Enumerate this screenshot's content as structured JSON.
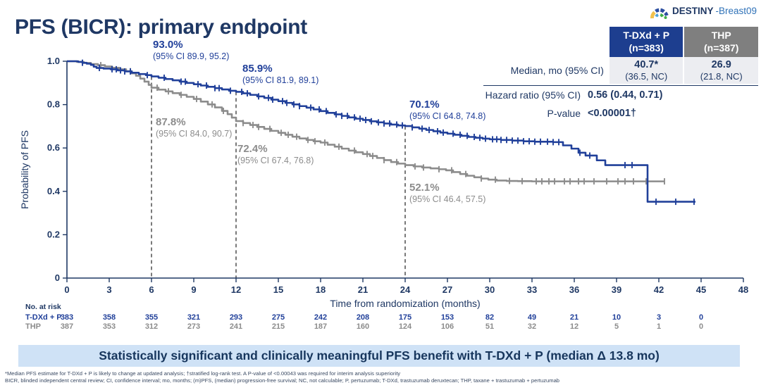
{
  "header": {
    "title": "PFS (BICR): primary endpoint",
    "logo": {
      "bold": "DESTINY",
      "light": "-Breast09"
    }
  },
  "stats_table": {
    "columns": [
      {
        "line1": "T-DXd + P",
        "line2": "(n=383)"
      },
      {
        "line1": "THP",
        "line2": "(n=387)"
      }
    ],
    "median": {
      "label": "Median, mo (95% CI)",
      "tdxd": "40.7*",
      "tdxd_ci": "(36.5, NC)",
      "thp": "26.9",
      "thp_ci": "(21.8, NC)"
    },
    "hazard": {
      "label": "Hazard ratio (95% CI)",
      "value": "0.56 (0.44, 0.71)"
    },
    "pvalue": {
      "label": "P-value",
      "value": "<0.00001†"
    }
  },
  "chart_data": {
    "type": "line",
    "subtype": "kaplan-meier",
    "xlabel": "Time from randomization (months)",
    "ylabel": "Probability of PFS",
    "xlim": [
      0,
      48
    ],
    "ylim": [
      0,
      1
    ],
    "x_ticks": [
      0,
      3,
      6,
      9,
      12,
      15,
      18,
      21,
      24,
      27,
      30,
      33,
      36,
      39,
      42,
      45,
      48
    ],
    "y_tick_values": [
      0,
      0.2,
      0.4,
      0.6,
      0.8,
      1.0
    ],
    "y_tick_labels": [
      "0",
      "0.2",
      "0.4",
      "0.6",
      "0.8",
      "1.0"
    ],
    "grid": false,
    "landmark_months": [
      6,
      12,
      24
    ],
    "axis_color": "#1F3864",
    "landmark_line_color": "#4D4D4D",
    "series": [
      {
        "name": "T-DXd + P",
        "color": "#21409A",
        "points": [
          [
            0,
            1.0
          ],
          [
            0.8,
            0.997
          ],
          [
            1.1,
            0.993
          ],
          [
            1.4,
            0.989
          ],
          [
            1.7,
            0.983
          ],
          [
            1.9,
            0.975
          ],
          [
            2.1,
            0.969
          ],
          [
            2.6,
            0.966
          ],
          [
            3.1,
            0.963
          ],
          [
            3.6,
            0.958
          ],
          [
            4.1,
            0.953
          ],
          [
            4.6,
            0.947
          ],
          [
            5.1,
            0.941
          ],
          [
            5.6,
            0.936
          ],
          [
            6.0,
            0.93
          ],
          [
            6.5,
            0.924
          ],
          [
            7.0,
            0.918
          ],
          [
            7.5,
            0.912
          ],
          [
            8.0,
            0.906
          ],
          [
            8.5,
            0.9
          ],
          [
            9.0,
            0.894
          ],
          [
            9.5,
            0.888
          ],
          [
            10.0,
            0.882
          ],
          [
            10.5,
            0.876
          ],
          [
            11.0,
            0.87
          ],
          [
            11.5,
            0.864
          ],
          [
            12.0,
            0.859
          ],
          [
            12.5,
            0.852
          ],
          [
            13.0,
            0.845
          ],
          [
            13.5,
            0.838
          ],
          [
            14.0,
            0.831
          ],
          [
            14.5,
            0.823
          ],
          [
            15.0,
            0.816
          ],
          [
            15.5,
            0.808
          ],
          [
            16.0,
            0.801
          ],
          [
            16.5,
            0.793
          ],
          [
            17.0,
            0.786
          ],
          [
            17.5,
            0.778
          ],
          [
            18.0,
            0.77
          ],
          [
            18.5,
            0.762
          ],
          [
            19.0,
            0.755
          ],
          [
            19.5,
            0.748
          ],
          [
            20.0,
            0.741
          ],
          [
            20.5,
            0.735
          ],
          [
            21.0,
            0.729
          ],
          [
            21.5,
            0.723
          ],
          [
            22.0,
            0.718
          ],
          [
            22.5,
            0.713
          ],
          [
            23.0,
            0.708
          ],
          [
            23.5,
            0.704
          ],
          [
            24.0,
            0.701
          ],
          [
            24.5,
            0.695
          ],
          [
            25.0,
            0.689
          ],
          [
            25.5,
            0.683
          ],
          [
            26.0,
            0.677
          ],
          [
            26.5,
            0.671
          ],
          [
            27.0,
            0.666
          ],
          [
            27.5,
            0.661
          ],
          [
            28.0,
            0.656
          ],
          [
            28.5,
            0.651
          ],
          [
            29.0,
            0.647
          ],
          [
            29.5,
            0.643
          ],
          [
            30.0,
            0.64
          ],
          [
            30.8,
            0.637
          ],
          [
            31.6,
            0.634
          ],
          [
            32.4,
            0.631
          ],
          [
            33.2,
            0.629
          ],
          [
            34.5,
            0.627
          ],
          [
            35.2,
            0.612
          ],
          [
            35.8,
            0.597
          ],
          [
            36.3,
            0.578
          ],
          [
            36.8,
            0.565
          ],
          [
            37.6,
            0.543
          ],
          [
            38.2,
            0.521
          ],
          [
            41.2,
            0.352
          ],
          [
            44.6,
            0.352
          ]
        ],
        "censor_times": [
          1.1,
          2.3,
          3.2,
          3.5,
          3.8,
          4.1,
          4.5,
          5.7,
          6.9,
          8.1,
          8.4,
          9.3,
          9.9,
          10.5,
          10.8,
          11.6,
          12.4,
          12.8,
          13.6,
          14.3,
          14.6,
          15.3,
          15.6,
          16.1,
          16.5,
          17.3,
          17.9,
          18.4,
          19.1,
          19.5,
          19.9,
          20.4,
          20.8,
          21.2,
          21.6,
          22.1,
          22.5,
          22.9,
          23.4,
          23.8,
          24.5,
          25.2,
          25.7,
          26.3,
          26.7,
          27.4,
          27.9,
          28.4,
          28.9,
          29.3,
          29.7,
          30.2,
          30.5,
          30.8,
          31.2,
          31.6,
          32.0,
          32.4,
          32.8,
          33.2,
          33.6,
          34.1,
          34.5,
          34.9,
          36.4,
          37.1,
          39.6,
          40.1,
          41.8,
          43.2,
          44.5
        ]
      },
      {
        "name": "THP",
        "color": "#8C8C8C",
        "points": [
          [
            0,
            1.0
          ],
          [
            0.7,
            0.997
          ],
          [
            1.2,
            0.992
          ],
          [
            1.7,
            0.987
          ],
          [
            2.2,
            0.982
          ],
          [
            2.7,
            0.976
          ],
          [
            3.2,
            0.97
          ],
          [
            3.7,
            0.963
          ],
          [
            4.2,
            0.954
          ],
          [
            4.6,
            0.944
          ],
          [
            4.9,
            0.933
          ],
          [
            5.2,
            0.92
          ],
          [
            5.5,
            0.906
          ],
          [
            5.8,
            0.891
          ],
          [
            6.0,
            0.878
          ],
          [
            6.5,
            0.869
          ],
          [
            7.0,
            0.861
          ],
          [
            7.5,
            0.853
          ],
          [
            8.0,
            0.845
          ],
          [
            8.5,
            0.836
          ],
          [
            9.0,
            0.826
          ],
          [
            9.5,
            0.814
          ],
          [
            10.0,
            0.801
          ],
          [
            10.5,
            0.787
          ],
          [
            11.0,
            0.771
          ],
          [
            11.4,
            0.756
          ],
          [
            11.7,
            0.74
          ],
          [
            12.0,
            0.724
          ],
          [
            12.5,
            0.715
          ],
          [
            13.0,
            0.706
          ],
          [
            13.5,
            0.697
          ],
          [
            14.0,
            0.688
          ],
          [
            14.5,
            0.679
          ],
          [
            15.0,
            0.67
          ],
          [
            15.5,
            0.661
          ],
          [
            16.0,
            0.652
          ],
          [
            16.5,
            0.644
          ],
          [
            17.0,
            0.637
          ],
          [
            17.5,
            0.631
          ],
          [
            18.0,
            0.625
          ],
          [
            18.5,
            0.615
          ],
          [
            19.0,
            0.606
          ],
          [
            19.5,
            0.597
          ],
          [
            20.0,
            0.588
          ],
          [
            20.5,
            0.58
          ],
          [
            21.0,
            0.572
          ],
          [
            21.5,
            0.563
          ],
          [
            22.0,
            0.554
          ],
          [
            22.5,
            0.544
          ],
          [
            23.0,
            0.535
          ],
          [
            23.5,
            0.528
          ],
          [
            24.0,
            0.521
          ],
          [
            24.6,
            0.515
          ],
          [
            25.2,
            0.51
          ],
          [
            25.8,
            0.506
          ],
          [
            26.4,
            0.502
          ],
          [
            26.9,
            0.497
          ],
          [
            27.4,
            0.489
          ],
          [
            27.9,
            0.48
          ],
          [
            28.4,
            0.472
          ],
          [
            28.9,
            0.465
          ],
          [
            29.4,
            0.459
          ],
          [
            29.9,
            0.454
          ],
          [
            30.5,
            0.45
          ],
          [
            31.2,
            0.448
          ],
          [
            32.0,
            0.447
          ],
          [
            33.0,
            0.446
          ],
          [
            42.4,
            0.446
          ]
        ],
        "censor_times": [
          2.4,
          4.5,
          6.4,
          7.2,
          8.1,
          9.2,
          10.3,
          11.1,
          12.5,
          13.2,
          13.6,
          14.4,
          15.2,
          15.7,
          16.3,
          17.1,
          17.6,
          18.3,
          19.3,
          20.4,
          21.3,
          21.7,
          22.5,
          23.4,
          24.7,
          25.3,
          26.4,
          27.3,
          28.3,
          29.4,
          30.4,
          31.4,
          32.3,
          33.3,
          33.7,
          34.2,
          34.6,
          35.3,
          35.7,
          36.3,
          36.7,
          37.4,
          38.3,
          39.1,
          39.6,
          40.2,
          41.1,
          42.4
        ]
      }
    ],
    "annotations": [
      {
        "series": "T-DXd + P",
        "month": 6,
        "pct": "93.0%",
        "ci": "(95% CI 89.9, 95.2)"
      },
      {
        "series": "T-DXd + P",
        "month": 12,
        "pct": "85.9%",
        "ci": "(95% CI 81.9, 89.1)"
      },
      {
        "series": "T-DXd + P",
        "month": 24,
        "pct": "70.1%",
        "ci": "(95% CI 64.8, 74.8)"
      },
      {
        "series": "THP",
        "month": 6,
        "pct": "87.8%",
        "ci": "(95% CI 84.0, 90.7)"
      },
      {
        "series": "THP",
        "month": 12,
        "pct": "72.4%",
        "ci": "(95% CI 67.4, 76.8)"
      },
      {
        "series": "THP",
        "month": 24,
        "pct": "52.1%",
        "ci": "(95% CI 46.4, 57.5)"
      }
    ]
  },
  "at_risk": {
    "title": "No. at risk",
    "months": [
      0,
      3,
      6,
      9,
      12,
      15,
      18,
      21,
      24,
      27,
      30,
      33,
      36,
      39,
      42,
      45
    ],
    "rows": [
      {
        "label": "T-DXd + P",
        "color": "#21409A",
        "values": [
          383,
          358,
          355,
          321,
          293,
          275,
          242,
          208,
          175,
          153,
          82,
          49,
          21,
          10,
          3,
          0
        ]
      },
      {
        "label": "THP",
        "color": "#8C8C8C",
        "values": [
          387,
          353,
          312,
          273,
          241,
          215,
          187,
          160,
          124,
          106,
          51,
          32,
          12,
          5,
          1,
          0
        ]
      }
    ]
  },
  "banner": {
    "text": "Statistically significant and clinically meaningful PFS benefit with T-DXd + P (median Δ 13.8 mo)",
    "background": "#CFE2F6",
    "text_color": "#17365D"
  },
  "footnotes": [
    "*Median PFS estimate for T-DXd + P is likely to change at updated analysis; †stratified log-rank test. A P-value of <0.00043 was required for interim analysis superiority",
    "BICR, blinded independent central review; CI, confidence interval; mo, months; (m)PFS, (median) progression-free survival; NC, not calculable; P, pertuzumab; T-DXd, trastuzumab deruxtecan; THP, taxane + trastuzumab + pertuzumab"
  ]
}
